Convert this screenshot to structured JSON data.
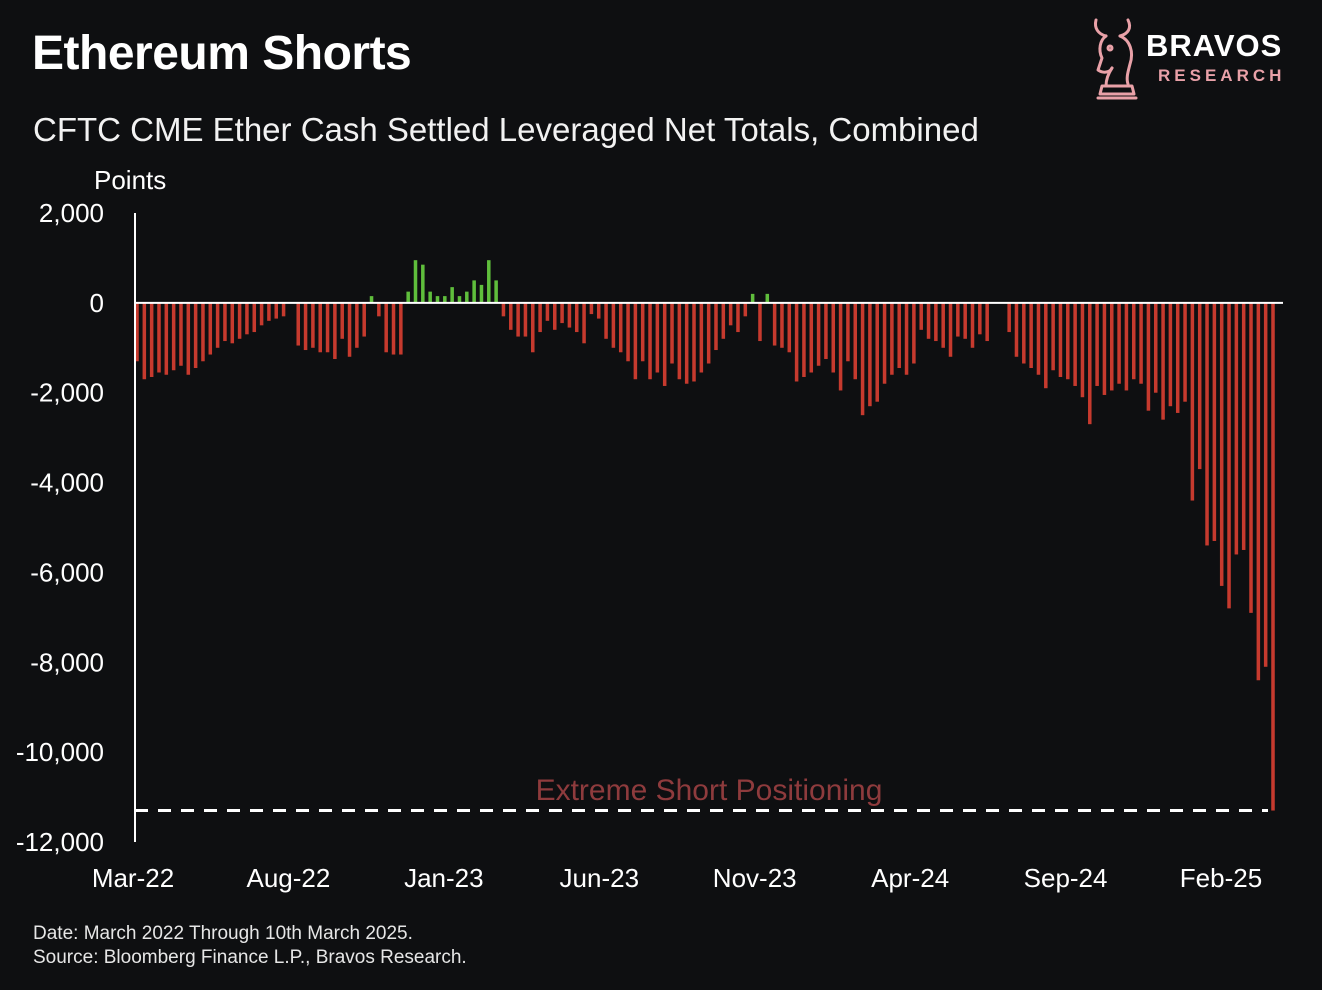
{
  "header": {
    "title": "Ethereum Shorts",
    "subtitle": "CFTC CME Ether Cash Settled Leveraged Net Totals, Combined"
  },
  "logo": {
    "name": "BRAVOS",
    "sub": "RESEARCH",
    "icon": "bull-chess-knight-icon"
  },
  "footer": {
    "line1": "Date: March 2022 Through 10th March 2025.",
    "line2": "Source: Bloomberg Finance L.P., Bravos Research."
  },
  "colors": {
    "background": "#0e0f11",
    "negative_bar": "#c63a2e",
    "positive_bar": "#5fbe3c",
    "annotation": "#8e3b3d",
    "axis": "#ffffff"
  },
  "chart_data": {
    "type": "bar",
    "ylabel": "Points",
    "ylim": [
      -12000,
      2000
    ],
    "yticks": [
      2000,
      0,
      -2000,
      -4000,
      -6000,
      -8000,
      -10000,
      -12000
    ],
    "ytick_labels": [
      "2,000",
      "0",
      "-2,000",
      "-4,000",
      "-6,000",
      "-8,000",
      "-10,000",
      "-12,000"
    ],
    "x_tick_labels": [
      "Mar-22",
      "Aug-22",
      "Jan-23",
      "Jun-23",
      "Nov-23",
      "Apr-24",
      "Sep-24",
      "Feb-25"
    ],
    "annotation": {
      "text": "Extreme Short Positioning",
      "value": -11300
    },
    "values": [
      -1300,
      -1700,
      -1650,
      -1550,
      -1600,
      -1500,
      -1400,
      -1600,
      -1450,
      -1300,
      -1150,
      -1000,
      -850,
      -900,
      -800,
      -700,
      -650,
      -500,
      -400,
      -350,
      -300,
      0,
      -950,
      -1050,
      -1000,
      -1100,
      -1100,
      -1250,
      -800,
      -1200,
      -1000,
      -750,
      150,
      -300,
      -1100,
      -1150,
      -1150,
      250,
      950,
      850,
      250,
      150,
      150,
      350,
      150,
      250,
      500,
      400,
      950,
      500,
      -300,
      -600,
      -750,
      -750,
      -1100,
      -650,
      -400,
      -600,
      -450,
      -550,
      -650,
      -900,
      -250,
      -350,
      -800,
      -1000,
      -1100,
      -1300,
      -1700,
      -1300,
      -1700,
      -1550,
      -1850,
      -1350,
      -1700,
      -1800,
      -1750,
      -1550,
      -1350,
      -1050,
      -800,
      -500,
      -650,
      -300,
      200,
      -850,
      200,
      -950,
      -1000,
      -1100,
      -1750,
      -1650,
      -1550,
      -1400,
      -1250,
      -1550,
      -1950,
      -1300,
      -1700,
      -2500,
      -2300,
      -2200,
      -1800,
      -1600,
      -1450,
      -1600,
      -1350,
      -600,
      -800,
      -850,
      -1000,
      -1200,
      -750,
      -800,
      -1000,
      -700,
      -850,
      0,
      0,
      -650,
      -1200,
      -1350,
      -1450,
      -1600,
      -1900,
      -1500,
      -1650,
      -1700,
      -1850,
      -2100,
      -2700,
      -1850,
      -2050,
      -1950,
      -1800,
      -1950,
      -1700,
      -1800,
      -2400,
      -2000,
      -2600,
      -2300,
      -2450,
      -2200,
      -4400,
      -3700,
      -5400,
      -5300,
      -6300,
      -6800,
      -5600,
      -5500,
      -6900,
      -8400,
      -8100,
      -11300
    ]
  }
}
